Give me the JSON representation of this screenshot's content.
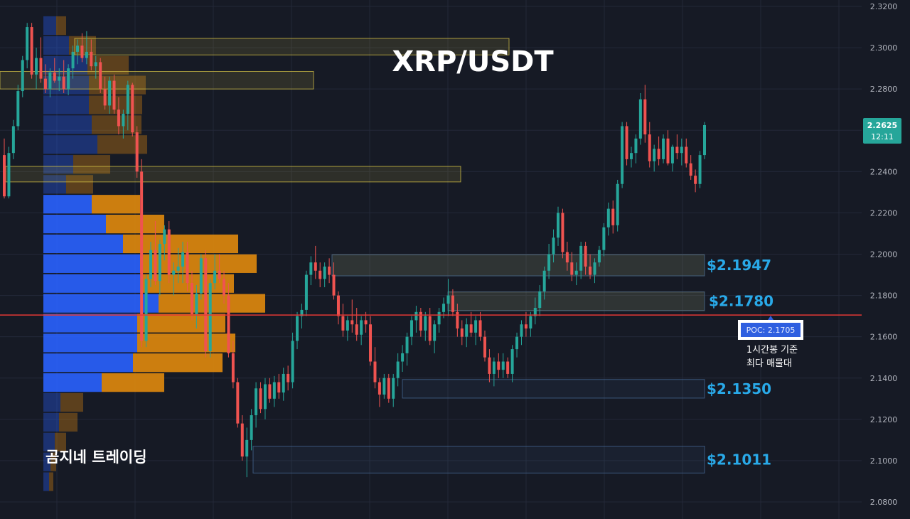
{
  "title": "XRP/USDT",
  "watermark": "곰지네 트레이딩",
  "colors": {
    "background": "#161a25",
    "grid": "#232838",
    "up": "#26a69a",
    "down": "#ef5350",
    "poc_line": "#e53935",
    "vol_up": "#2962ff",
    "vol_down": "#e08a0d",
    "zone_yellow": "#d4c246",
    "zone_blue": "#3d5a80",
    "level_label": "#29a9e8"
  },
  "chart_data": {
    "type": "candlestick",
    "title": "XRP/USDT",
    "ylim": [
      2.075,
      2.3225
    ],
    "y_ticks": [
      "2.3200",
      "2.3000",
      "2.2800",
      "2.2600",
      "2.2400",
      "2.2200",
      "2.2000",
      "2.1800",
      "2.1600",
      "2.1400",
      "2.1200",
      "2.1000",
      "2.0800"
    ],
    "current_price": {
      "value": "2.2625",
      "countdown": "12:11"
    },
    "poc": {
      "label": "POC: 2.1705",
      "value": 2.1705,
      "note_line1": "1시간봉 기준",
      "note_line2": "최다 매물대"
    },
    "support_levels": [
      {
        "label": "$2.1947",
        "top": 2.1997,
        "bottom": 2.1895
      },
      {
        "label": "$2.1780",
        "top": 2.1817,
        "bottom": 2.1727
      },
      {
        "label": "$2.1350",
        "top": 2.1393,
        "bottom": 2.1303
      },
      {
        "label": "$2.1011",
        "top": 2.107,
        "bottom": 2.094
      }
    ],
    "yellow_zones": [
      {
        "top": 2.3045,
        "bottom": 2.2965
      },
      {
        "top": 2.2885,
        "bottom": 2.28
      },
      {
        "top": 2.2425,
        "bottom": 2.235
      },
      {
        "top": 2.1997,
        "bottom": 2.1895
      },
      {
        "top": 2.1817,
        "bottom": 2.1727
      }
    ],
    "volume_profile": [
      {
        "price": 2.3107,
        "up": 18,
        "down": 14
      },
      {
        "price": 2.3011,
        "up": 36,
        "down": 38
      },
      {
        "price": 2.2915,
        "up": 62,
        "down": 58
      },
      {
        "price": 2.2819,
        "up": 64,
        "down": 80
      },
      {
        "price": 2.2723,
        "up": 64,
        "down": 75
      },
      {
        "price": 2.2627,
        "up": 68,
        "down": 70
      },
      {
        "price": 2.2531,
        "up": 76,
        "down": 70
      },
      {
        "price": 2.2435,
        "up": 42,
        "down": 52
      },
      {
        "price": 2.2338,
        "up": 32,
        "down": 38
      },
      {
        "price": 2.2242,
        "up": 68,
        "down": 68
      },
      {
        "price": 2.2146,
        "up": 88,
        "down": 82
      },
      {
        "price": 2.205,
        "up": 112,
        "down": 162
      },
      {
        "price": 2.1954,
        "up": 136,
        "down": 164
      },
      {
        "price": 2.1858,
        "up": 138,
        "down": 130
      },
      {
        "price": 2.1762,
        "up": 162,
        "down": 150
      },
      {
        "price": 2.1666,
        "up": 132,
        "down": 124
      },
      {
        "price": 2.157,
        "up": 132,
        "down": 138
      },
      {
        "price": 2.1474,
        "up": 126,
        "down": 126
      },
      {
        "price": 2.1378,
        "up": 82,
        "down": 88
      },
      {
        "price": 2.1282,
        "up": 24,
        "down": 32
      },
      {
        "price": 2.1186,
        "up": 22,
        "down": 26
      },
      {
        "price": 2.109,
        "up": 16,
        "down": 16
      },
      {
        "price": 2.0994,
        "up": 10,
        "down": 8
      },
      {
        "price": 2.0898,
        "up": 8,
        "down": 6
      }
    ],
    "candles": [
      [
        2.248,
        2.256,
        2.227,
        2.228
      ],
      [
        2.228,
        2.252,
        2.227,
        2.249
      ],
      [
        2.249,
        2.265,
        2.246,
        2.262
      ],
      [
        2.262,
        2.282,
        2.26,
        2.279
      ],
      [
        2.279,
        2.296,
        2.276,
        2.294
      ],
      [
        2.294,
        2.312,
        2.29,
        2.31
      ],
      [
        2.31,
        2.312,
        2.285,
        2.287
      ],
      [
        2.287,
        2.3,
        2.28,
        2.295
      ],
      [
        2.295,
        2.305,
        2.283,
        2.285
      ],
      [
        2.285,
        2.292,
        2.278,
        2.28
      ],
      [
        2.28,
        2.29,
        2.276,
        2.288
      ],
      [
        2.288,
        2.295,
        2.283,
        2.284
      ],
      [
        2.284,
        2.29,
        2.279,
        2.286
      ],
      [
        2.286,
        2.294,
        2.278,
        2.28
      ],
      [
        2.28,
        2.292,
        2.277,
        2.29
      ],
      [
        2.29,
        2.301,
        2.285,
        2.298
      ],
      [
        2.298,
        2.304,
        2.292,
        2.301
      ],
      [
        2.301,
        2.307,
        2.293,
        2.295
      ],
      [
        2.295,
        2.308,
        2.292,
        2.298
      ],
      [
        2.298,
        2.304,
        2.289,
        2.291
      ],
      [
        2.291,
        2.296,
        2.285,
        2.293
      ],
      [
        2.293,
        2.295,
        2.278,
        2.28
      ],
      [
        2.28,
        2.286,
        2.27,
        2.272
      ],
      [
        2.272,
        2.286,
        2.268,
        2.284
      ],
      [
        2.284,
        2.287,
        2.268,
        2.27
      ],
      [
        2.27,
        2.276,
        2.258,
        2.262
      ],
      [
        2.262,
        2.27,
        2.256,
        2.268
      ],
      [
        2.268,
        2.284,
        2.26,
        2.282
      ],
      [
        2.282,
        2.283,
        2.257,
        2.259
      ],
      [
        2.259,
        2.262,
        2.237,
        2.24
      ],
      [
        2.24,
        2.246,
        2.155,
        2.158
      ],
      [
        2.158,
        2.19,
        2.155,
        2.188
      ],
      [
        2.188,
        2.206,
        2.184,
        2.202
      ],
      [
        2.202,
        2.216,
        2.185,
        2.187
      ],
      [
        2.187,
        2.207,
        2.18,
        2.205
      ],
      [
        2.205,
        2.214,
        2.197,
        2.212
      ],
      [
        2.212,
        2.216,
        2.186,
        2.19
      ],
      [
        2.19,
        2.196,
        2.18,
        2.192
      ],
      [
        2.192,
        2.203,
        2.186,
        2.194
      ],
      [
        2.194,
        2.206,
        2.186,
        2.201
      ],
      [
        2.201,
        2.206,
        2.182,
        2.186
      ],
      [
        2.186,
        2.192,
        2.168,
        2.171
      ],
      [
        2.171,
        2.185,
        2.164,
        2.181
      ],
      [
        2.181,
        2.2,
        2.178,
        2.198
      ],
      [
        2.198,
        2.202,
        2.15,
        2.153
      ],
      [
        2.153,
        2.188,
        2.15,
        2.186
      ],
      [
        2.186,
        2.2,
        2.183,
        2.192
      ],
      [
        2.192,
        2.2,
        2.186,
        2.188
      ],
      [
        2.188,
        2.192,
        2.176,
        2.18
      ],
      [
        2.18,
        2.186,
        2.15,
        2.152
      ],
      [
        2.152,
        2.158,
        2.135,
        2.138
      ],
      [
        2.138,
        2.14,
        2.116,
        2.118
      ],
      [
        2.118,
        2.122,
        2.1,
        2.102
      ],
      [
        2.102,
        2.116,
        2.092,
        2.11
      ],
      [
        2.11,
        2.125,
        2.105,
        2.122
      ],
      [
        2.122,
        2.138,
        2.116,
        2.135
      ],
      [
        2.135,
        2.138,
        2.123,
        2.125
      ],
      [
        2.125,
        2.14,
        2.12,
        2.137
      ],
      [
        2.137,
        2.14,
        2.128,
        2.13
      ],
      [
        2.13,
        2.141,
        2.126,
        2.138
      ],
      [
        2.138,
        2.142,
        2.13,
        2.133
      ],
      [
        2.133,
        2.145,
        2.129,
        2.142
      ],
      [
        2.142,
        2.146,
        2.134,
        2.138
      ],
      [
        2.138,
        2.162,
        2.135,
        2.158
      ],
      [
        2.158,
        2.172,
        2.154,
        2.17
      ],
      [
        2.17,
        2.176,
        2.164,
        2.173
      ],
      [
        2.173,
        2.192,
        2.17,
        2.19
      ],
      [
        2.19,
        2.199,
        2.185,
        2.196
      ],
      [
        2.196,
        2.204,
        2.188,
        2.192
      ],
      [
        2.192,
        2.196,
        2.184,
        2.188
      ],
      [
        2.188,
        2.196,
        2.184,
        2.194
      ],
      [
        2.194,
        2.198,
        2.186,
        2.19
      ],
      [
        2.19,
        2.196,
        2.178,
        2.18
      ],
      [
        2.18,
        2.182,
        2.166,
        2.17
      ],
      [
        2.17,
        2.176,
        2.16,
        2.163
      ],
      [
        2.163,
        2.17,
        2.158,
        2.168
      ],
      [
        2.168,
        2.178,
        2.162,
        2.166
      ],
      [
        2.166,
        2.174,
        2.158,
        2.161
      ],
      [
        2.161,
        2.17,
        2.156,
        2.168
      ],
      [
        2.168,
        2.172,
        2.162,
        2.166
      ],
      [
        2.166,
        2.17,
        2.146,
        2.148
      ],
      [
        2.148,
        2.155,
        2.135,
        2.138
      ],
      [
        2.138,
        2.14,
        2.126,
        2.132
      ],
      [
        2.132,
        2.142,
        2.13,
        2.14
      ],
      [
        2.14,
        2.142,
        2.128,
        2.13
      ],
      [
        2.13,
        2.142,
        2.126,
        2.14
      ],
      [
        2.14,
        2.152,
        2.136,
        2.148
      ],
      [
        2.148,
        2.156,
        2.143,
        2.152
      ],
      [
        2.152,
        2.162,
        2.146,
        2.16
      ],
      [
        2.16,
        2.17,
        2.156,
        2.168
      ],
      [
        2.168,
        2.175,
        2.162,
        2.172
      ],
      [
        2.172,
        2.174,
        2.16,
        2.163
      ],
      [
        2.163,
        2.172,
        2.158,
        2.17
      ],
      [
        2.17,
        2.174,
        2.156,
        2.158
      ],
      [
        2.158,
        2.168,
        2.152,
        2.166
      ],
      [
        2.166,
        2.174,
        2.162,
        2.172
      ],
      [
        2.172,
        2.179,
        2.169,
        2.176
      ],
      [
        2.176,
        2.188,
        2.17,
        2.18
      ],
      [
        2.18,
        2.183,
        2.17,
        2.172
      ],
      [
        2.172,
        2.176,
        2.16,
        2.164
      ],
      [
        2.164,
        2.168,
        2.156,
        2.16
      ],
      [
        2.16,
        2.169,
        2.155,
        2.166
      ],
      [
        2.166,
        2.172,
        2.16,
        2.162
      ],
      [
        2.162,
        2.17,
        2.156,
        2.168
      ],
      [
        2.168,
        2.172,
        2.158,
        2.16
      ],
      [
        2.16,
        2.163,
        2.148,
        2.15
      ],
      [
        2.15,
        2.154,
        2.138,
        2.142
      ],
      [
        2.142,
        2.15,
        2.136,
        2.148
      ],
      [
        2.148,
        2.152,
        2.14,
        2.144
      ],
      [
        2.144,
        2.152,
        2.14,
        2.148
      ],
      [
        2.148,
        2.15,
        2.14,
        2.142
      ],
      [
        2.142,
        2.156,
        2.138,
        2.154
      ],
      [
        2.154,
        2.162,
        2.15,
        2.16
      ],
      [
        2.16,
        2.168,
        2.156,
        2.166
      ],
      [
        2.166,
        2.172,
        2.16,
        2.164
      ],
      [
        2.164,
        2.172,
        2.16,
        2.17
      ],
      [
        2.17,
        2.179,
        2.166,
        2.174
      ],
      [
        2.174,
        2.185,
        2.17,
        2.182
      ],
      [
        2.182,
        2.194,
        2.178,
        2.192
      ],
      [
        2.192,
        2.205,
        2.188,
        2.2
      ],
      [
        2.2,
        2.212,
        2.196,
        2.208
      ],
      [
        2.208,
        2.223,
        2.204,
        2.22
      ],
      [
        2.22,
        2.222,
        2.198,
        2.201
      ],
      [
        2.201,
        2.206,
        2.192,
        2.196
      ],
      [
        2.196,
        2.201,
        2.187,
        2.19
      ],
      [
        2.19,
        2.196,
        2.185,
        2.192
      ],
      [
        2.192,
        2.206,
        2.188,
        2.204
      ],
      [
        2.204,
        2.206,
        2.19,
        2.194
      ],
      [
        2.194,
        2.2,
        2.188,
        2.19
      ],
      [
        2.19,
        2.198,
        2.186,
        2.196
      ],
      [
        2.196,
        2.204,
        2.194,
        2.202
      ],
      [
        2.202,
        2.215,
        2.199,
        2.213
      ],
      [
        2.213,
        2.225,
        2.209,
        2.222
      ],
      [
        2.222,
        2.226,
        2.21,
        2.214
      ],
      [
        2.214,
        2.236,
        2.211,
        2.234
      ],
      [
        2.234,
        2.264,
        2.232,
        2.262
      ],
      [
        2.262,
        2.264,
        2.243,
        2.246
      ],
      [
        2.246,
        2.252,
        2.242,
        2.249
      ],
      [
        2.249,
        2.258,
        2.244,
        2.256
      ],
      [
        2.256,
        2.278,
        2.253,
        2.275
      ],
      [
        2.275,
        2.282,
        2.254,
        2.258
      ],
      [
        2.258,
        2.264,
        2.242,
        2.245
      ],
      [
        2.245,
        2.253,
        2.24,
        2.251
      ],
      [
        2.251,
        2.257,
        2.243,
        2.246
      ],
      [
        2.246,
        2.258,
        2.244,
        2.256
      ],
      [
        2.256,
        2.26,
        2.243,
        2.244
      ],
      [
        2.244,
        2.253,
        2.24,
        2.252
      ],
      [
        2.252,
        2.258,
        2.246,
        2.249
      ],
      [
        2.249,
        2.256,
        2.243,
        2.252
      ],
      [
        2.252,
        2.256,
        2.242,
        2.244
      ],
      [
        2.244,
        2.248,
        2.236,
        2.238
      ],
      [
        2.238,
        2.241,
        2.23,
        2.234
      ],
      [
        2.234,
        2.25,
        2.232,
        2.248
      ],
      [
        2.248,
        2.264,
        2.246,
        2.2625
      ]
    ]
  }
}
